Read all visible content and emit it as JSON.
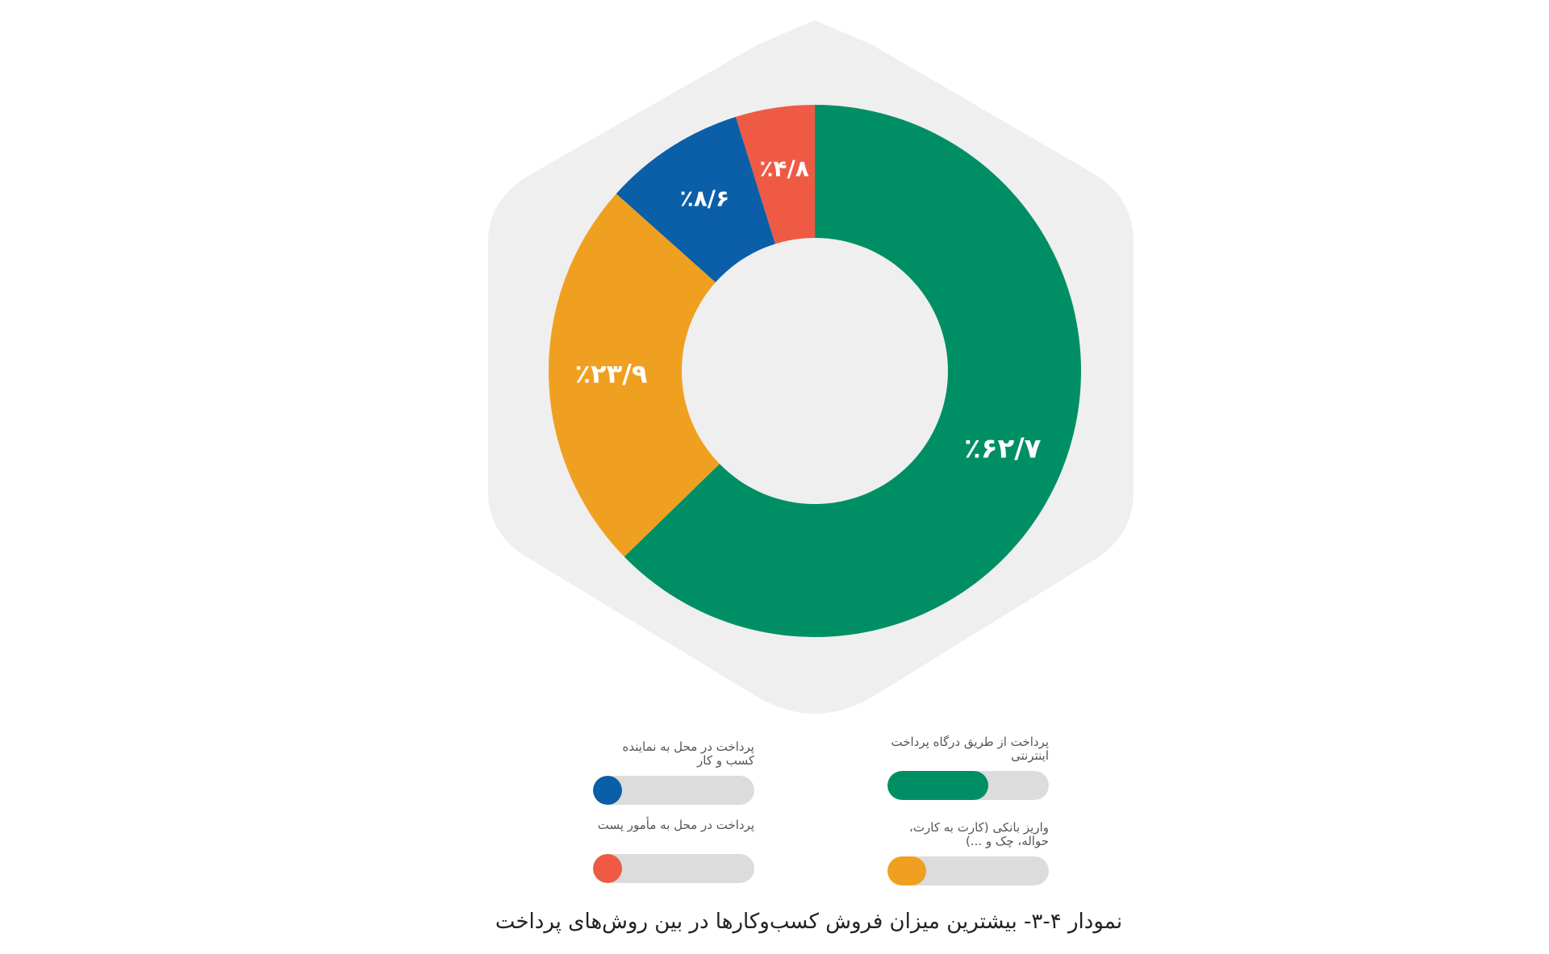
{
  "caption": "نمودار ۴-۳- بیشترین میزان فروش کسب‌وکارها در بین روش‌های پرداخت",
  "chart_data": {
    "type": "pie",
    "donut": true,
    "categories": [
      "پرداخت از طریق درگاه پرداخت اینترنتی",
      "واریز بانکی (کارت به کارت، حواله، چک و ...)",
      "پرداخت در محل به نماینده کسب و کار",
      "پرداخت در محل به مأمور پست"
    ],
    "values": [
      62.7,
      23.9,
      8.6,
      4.8
    ],
    "value_labels": [
      "٪۶۲/۷",
      "٪۲۳/۹",
      "٪۸/۶",
      "٪۴/۸"
    ],
    "colors": [
      "#008f64",
      "#f0a020",
      "#0a5fa8",
      "#ef5a45"
    ],
    "background_color": "#efefef",
    "legend": [
      {
        "label": "پرداخت از طریق درگاه پرداخت\nاینترنتی",
        "value": 62.7,
        "color": "#008f64"
      },
      {
        "label": "واریز بانکی (کارت به کارت،\nحواله، چک و ...)",
        "value": 23.9,
        "color": "#f0a020"
      },
      {
        "label": "پرداخت در محل به نماینده\nکسب و کار",
        "value": 8.6,
        "color": "#0a5fa8"
      },
      {
        "label": "پرداخت در محل به مأمور پست",
        "value": 4.8,
        "color": "#ef5a45"
      }
    ],
    "legend_placement": "bottom"
  }
}
